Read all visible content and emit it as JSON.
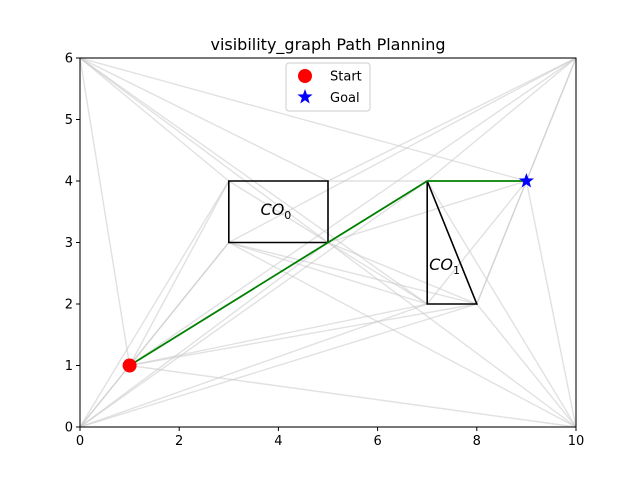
{
  "chart_data": {
    "type": "line",
    "title": "visibility_graph Path Planning",
    "xlabel": "",
    "ylabel": "",
    "xlim": [
      0,
      10
    ],
    "ylim": [
      0,
      6
    ],
    "xticks": [
      0,
      2,
      4,
      6,
      8,
      10
    ],
    "yticks": [
      0,
      1,
      2,
      3,
      4,
      5,
      6
    ],
    "grid": false,
    "legend_placement": "upper-center",
    "colors": {
      "edge": "#c8c8c8",
      "obstacle": "#000000",
      "path": "#008000",
      "start": "#ff0000",
      "goal": "#0000ff"
    },
    "start": {
      "name": "Start",
      "x": 1,
      "y": 1
    },
    "goal": {
      "name": "Goal",
      "x": 9,
      "y": 4
    },
    "obstacles": [
      {
        "label": "CO",
        "sub": "0",
        "label_pos": [
          3.95,
          3.45
        ],
        "vertices": [
          [
            3,
            3
          ],
          [
            5,
            3
          ],
          [
            5,
            4
          ],
          [
            3,
            4
          ]
        ]
      },
      {
        "label": "CO",
        "sub": "1",
        "label_pos": [
          7.35,
          2.55
        ],
        "vertices": [
          [
            7,
            2
          ],
          [
            8,
            2
          ],
          [
            7,
            4
          ]
        ]
      }
    ],
    "visibility_edges": [
      [
        [
          0,
          0
        ],
        [
          0,
          6
        ]
      ],
      [
        [
          0,
          6
        ],
        [
          10,
          6
        ]
      ],
      [
        [
          10,
          6
        ],
        [
          10,
          0
        ]
      ],
      [
        [
          10,
          0
        ],
        [
          0,
          0
        ]
      ],
      [
        [
          0,
          6
        ],
        [
          3,
          4
        ]
      ],
      [
        [
          0,
          6
        ],
        [
          9,
          4
        ]
      ],
      [
        [
          0,
          6
        ],
        [
          5,
          3
        ]
      ],
      [
        [
          0,
          6
        ],
        [
          1,
          1
        ]
      ],
      [
        [
          0,
          6
        ],
        [
          7,
          2
        ]
      ],
      [
        [
          0,
          6
        ],
        [
          5,
          4
        ]
      ],
      [
        [
          10,
          6
        ],
        [
          7,
          4
        ]
      ],
      [
        [
          10,
          6
        ],
        [
          9,
          4
        ]
      ],
      [
        [
          10,
          6
        ],
        [
          5,
          4
        ]
      ],
      [
        [
          10,
          6
        ],
        [
          8,
          2
        ]
      ],
      [
        [
          10,
          6
        ],
        [
          3,
          3
        ]
      ],
      [
        [
          10,
          6
        ],
        [
          1,
          1
        ]
      ],
      [
        [
          0,
          0
        ],
        [
          1,
          1
        ]
      ],
      [
        [
          0,
          0
        ],
        [
          3,
          3
        ]
      ],
      [
        [
          0,
          0
        ],
        [
          3,
          4
        ]
      ],
      [
        [
          0,
          0
        ],
        [
          5,
          3
        ]
      ],
      [
        [
          0,
          0
        ],
        [
          7,
          2
        ]
      ],
      [
        [
          0,
          0
        ],
        [
          8,
          2
        ]
      ],
      [
        [
          0,
          0
        ],
        [
          7,
          4
        ]
      ],
      [
        [
          10,
          0
        ],
        [
          1,
          1
        ]
      ],
      [
        [
          10,
          0
        ],
        [
          9,
          4
        ]
      ],
      [
        [
          10,
          0
        ],
        [
          8,
          2
        ]
      ],
      [
        [
          10,
          0
        ],
        [
          5,
          3
        ]
      ],
      [
        [
          10,
          0
        ],
        [
          7,
          4
        ]
      ],
      [
        [
          10,
          0
        ],
        [
          3,
          3
        ]
      ],
      [
        [
          1,
          1
        ],
        [
          3,
          3
        ]
      ],
      [
        [
          1,
          1
        ],
        [
          3,
          4
        ]
      ],
      [
        [
          1,
          1
        ],
        [
          5,
          3
        ]
      ],
      [
        [
          1,
          1
        ],
        [
          7,
          2
        ]
      ],
      [
        [
          1,
          1
        ],
        [
          8,
          2
        ]
      ],
      [
        [
          3,
          4
        ],
        [
          5,
          3
        ]
      ],
      [
        [
          5,
          4
        ],
        [
          7,
          4
        ]
      ],
      [
        [
          5,
          3
        ],
        [
          7,
          2
        ]
      ],
      [
        [
          5,
          3
        ],
        [
          8,
          2
        ]
      ],
      [
        [
          5,
          3
        ],
        [
          9,
          4
        ]
      ],
      [
        [
          3,
          3
        ],
        [
          7,
          2
        ]
      ],
      [
        [
          3,
          3
        ],
        [
          8,
          2
        ]
      ],
      [
        [
          8,
          2
        ],
        [
          9,
          4
        ]
      ],
      [
        [
          7,
          2
        ],
        [
          9,
          4
        ]
      ]
    ],
    "path": [
      [
        1,
        1
      ],
      [
        7,
        4
      ],
      [
        9,
        4
      ]
    ]
  }
}
